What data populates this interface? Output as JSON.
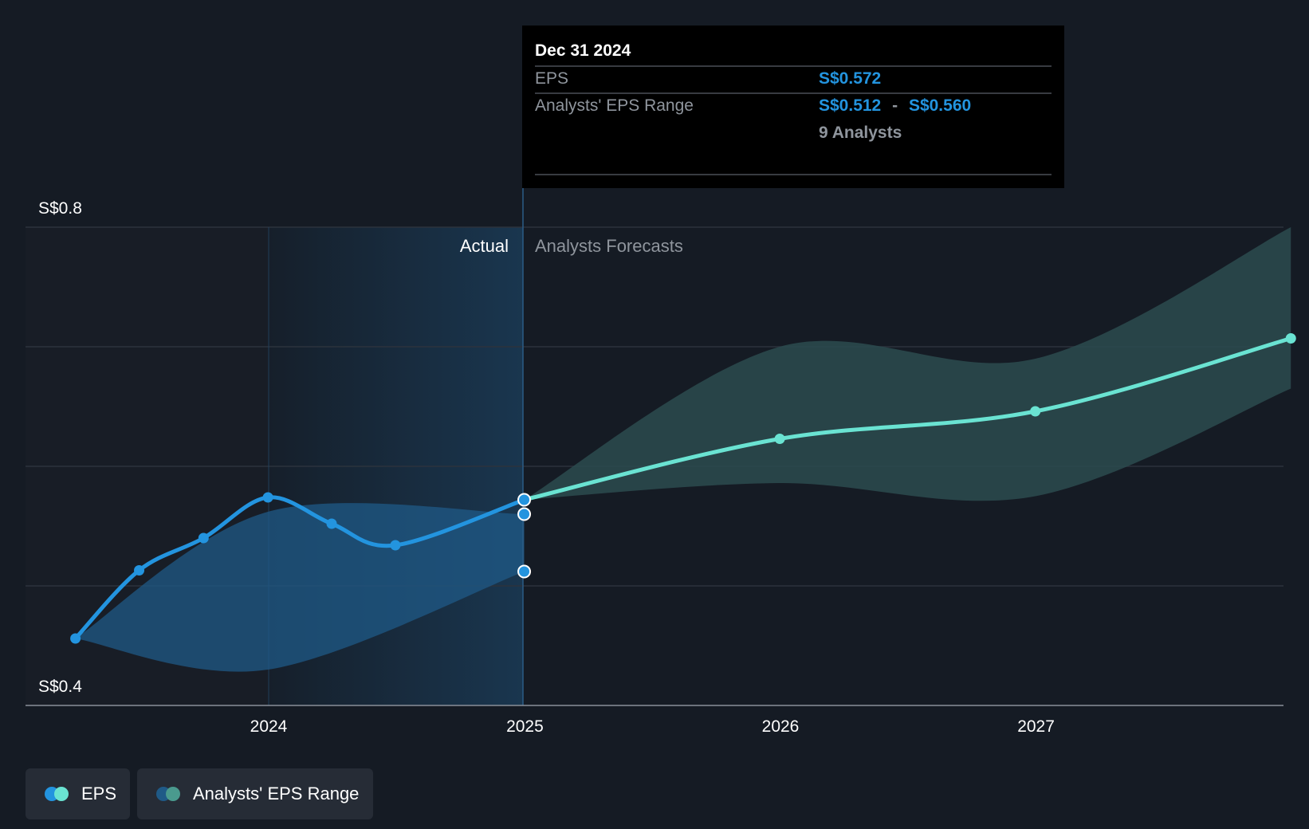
{
  "tooltip": {
    "date": "Dec 31 2024",
    "eps_label": "EPS",
    "eps_value": "S$0.572",
    "range_label": "Analysts' EPS Range",
    "range_low": "S$0.512",
    "range_sep": "-",
    "range_high": "S$0.560",
    "analysts": "9 Analysts"
  },
  "regions": {
    "actual_label": "Actual",
    "forecast_label": "Analysts Forecasts"
  },
  "legend": {
    "eps_label": "EPS",
    "range_label": "Analysts' EPS Range"
  },
  "colors": {
    "background": "#151b24",
    "actual_line": "#2394df",
    "forecast_line": "#6ae3d2",
    "actual_band": "#1f5a87",
    "forecast_band": "#2c4b4f",
    "tooltip_value": "#2394df"
  },
  "chart_data": {
    "type": "line",
    "y_tick_labels": [
      "S$0.8",
      "S$0.4"
    ],
    "ylim": [
      0.4,
      0.8
    ],
    "x_tick_labels": [
      "2024",
      "2025",
      "2026",
      "2027"
    ],
    "xlim": [
      "2023-03-31",
      "2027-12-31"
    ],
    "grid": true,
    "series": [
      {
        "name": "EPS",
        "kind": "actual",
        "points": [
          {
            "x": "2023-03-31",
            "y": 0.456
          },
          {
            "x": "2023-06-30",
            "y": 0.513
          },
          {
            "x": "2023-09-30",
            "y": 0.54
          },
          {
            "x": "2023-12-31",
            "y": 0.574
          },
          {
            "x": "2024-03-31",
            "y": 0.552
          },
          {
            "x": "2024-06-30",
            "y": 0.534
          },
          {
            "x": "2024-12-31",
            "y": 0.572
          }
        ]
      },
      {
        "name": "EPS",
        "kind": "forecast",
        "points": [
          {
            "x": "2024-12-31",
            "y": 0.572
          },
          {
            "x": "2025-12-31",
            "y": 0.623
          },
          {
            "x": "2026-12-31",
            "y": 0.646
          },
          {
            "x": "2027-12-31",
            "y": 0.707
          }
        ]
      },
      {
        "name": "Analysts' EPS Range",
        "kind": "actual_range",
        "points": [
          {
            "x": "2023-03-31",
            "low": 0.456,
            "high": 0.456
          },
          {
            "x": "2023-12-31",
            "low": 0.43,
            "high": 0.562
          },
          {
            "x": "2024-12-31",
            "low": 0.512,
            "high": 0.56
          }
        ]
      },
      {
        "name": "Analysts' EPS Range",
        "kind": "forecast_range",
        "points": [
          {
            "x": "2024-12-31",
            "low": 0.572,
            "high": 0.572
          },
          {
            "x": "2025-12-31",
            "low": 0.586,
            "high": 0.7
          },
          {
            "x": "2026-12-31",
            "low": 0.575,
            "high": 0.69
          },
          {
            "x": "2027-12-31",
            "low": 0.665,
            "high": 0.8
          }
        ]
      }
    ],
    "highlight": {
      "x": "2024-12-31",
      "values": [
        0.572,
        0.56,
        0.512
      ]
    }
  }
}
